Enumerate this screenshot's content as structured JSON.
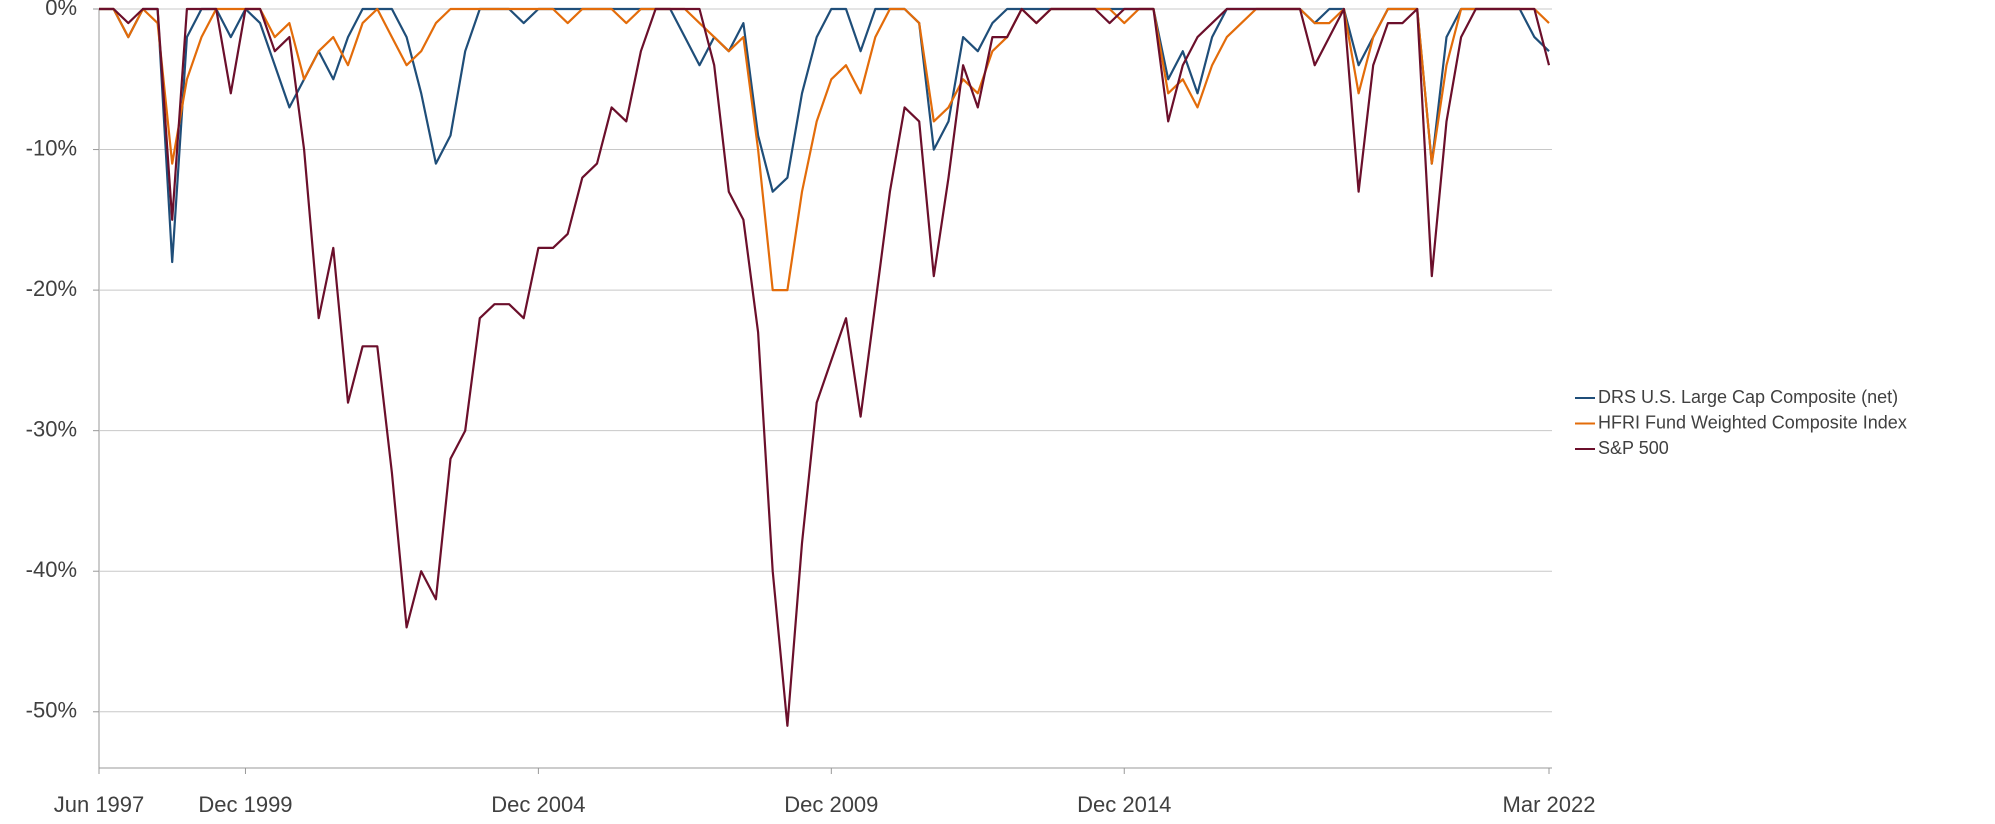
{
  "chart_data": {
    "type": "line",
    "x": [
      "1997-06",
      "1997-09",
      "1997-12",
      "1998-03",
      "1998-06",
      "1998-09",
      "1998-12",
      "1999-03",
      "1999-06",
      "1999-09",
      "1999-12",
      "2000-03",
      "2000-06",
      "2000-09",
      "2000-12",
      "2001-03",
      "2001-06",
      "2001-09",
      "2001-12",
      "2002-03",
      "2002-06",
      "2002-09",
      "2002-12",
      "2003-03",
      "2003-06",
      "2003-09",
      "2003-12",
      "2004-03",
      "2004-06",
      "2004-09",
      "2004-12",
      "2005-03",
      "2005-06",
      "2005-09",
      "2005-12",
      "2006-03",
      "2006-06",
      "2006-09",
      "2006-12",
      "2007-03",
      "2007-06",
      "2007-09",
      "2007-12",
      "2008-03",
      "2008-06",
      "2008-09",
      "2008-12",
      "2009-03",
      "2009-06",
      "2009-09",
      "2009-12",
      "2010-03",
      "2010-06",
      "2010-09",
      "2010-12",
      "2011-03",
      "2011-06",
      "2011-09",
      "2011-12",
      "2012-03",
      "2012-06",
      "2012-09",
      "2012-12",
      "2013-03",
      "2013-06",
      "2013-09",
      "2013-12",
      "2014-03",
      "2014-06",
      "2014-09",
      "2014-12",
      "2015-03",
      "2015-06",
      "2015-09",
      "2015-12",
      "2016-03",
      "2016-06",
      "2016-09",
      "2016-12",
      "2017-03",
      "2017-06",
      "2017-09",
      "2017-12",
      "2018-03",
      "2018-06",
      "2018-09",
      "2018-12",
      "2019-03",
      "2019-06",
      "2019-09",
      "2019-12",
      "2020-03",
      "2020-06",
      "2020-09",
      "2020-12",
      "2021-03",
      "2021-06",
      "2021-09",
      "2021-12",
      "2022-03"
    ],
    "series": [
      {
        "name": "DRS U.S. Large Cap Composite (net)",
        "color": "#1f4e79",
        "values": [
          0,
          0,
          -2,
          0,
          0,
          -18,
          -2,
          0,
          0,
          -2,
          0,
          -1,
          -4,
          -7,
          -5,
          -3,
          -5,
          -2,
          0,
          0,
          0,
          -2,
          -6,
          -11,
          -9,
          -3,
          0,
          0,
          0,
          -1,
          0,
          0,
          0,
          0,
          0,
          0,
          0,
          0,
          0,
          0,
          -2,
          -4,
          -2,
          -3,
          -1,
          -9,
          -13,
          -12,
          -6,
          -2,
          0,
          0,
          -3,
          0,
          0,
          0,
          -1,
          -10,
          -8,
          -2,
          -3,
          -1,
          0,
          0,
          0,
          0,
          0,
          0,
          0,
          0,
          0,
          0,
          0,
          -5,
          -3,
          -6,
          -2,
          0,
          0,
          0,
          0,
          0,
          0,
          -1,
          0,
          0,
          -4,
          -2,
          0,
          0,
          0,
          -11,
          -2,
          0,
          0,
          0,
          0,
          0,
          -2,
          -3
        ]
      },
      {
        "name": "HFRI Fund Weighted Composite Index",
        "color": "#e36c0a",
        "values": [
          0,
          0,
          -2,
          0,
          -1,
          -11,
          -5,
          -2,
          0,
          0,
          0,
          0,
          -2,
          -1,
          -5,
          -3,
          -2,
          -4,
          -1,
          0,
          -2,
          -4,
          -3,
          -1,
          0,
          0,
          0,
          0,
          0,
          0,
          0,
          0,
          -1,
          0,
          0,
          0,
          -1,
          0,
          0,
          0,
          0,
          -1,
          -2,
          -3,
          -2,
          -10,
          -20,
          -20,
          -13,
          -8,
          -5,
          -4,
          -6,
          -2,
          0,
          0,
          -1,
          -8,
          -7,
          -5,
          -6,
          -3,
          -2,
          0,
          -1,
          0,
          0,
          0,
          0,
          0,
          -1,
          0,
          0,
          -6,
          -5,
          -7,
          -4,
          -2,
          -1,
          0,
          0,
          0,
          0,
          -1,
          -1,
          0,
          -6,
          -2,
          0,
          0,
          0,
          -11,
          -4,
          0,
          0,
          0,
          0,
          0,
          0,
          -1
        ]
      },
      {
        "name": "S&P 500",
        "color": "#6b0f2b",
        "values": [
          0,
          0,
          -1,
          0,
          0,
          -15,
          0,
          0,
          0,
          -6,
          0,
          0,
          -3,
          -2,
          -10,
          -22,
          -17,
          -28,
          -24,
          -24,
          -33,
          -44,
          -40,
          -42,
          -32,
          -30,
          -22,
          -21,
          -21,
          -22,
          -17,
          -17,
          -16,
          -12,
          -11,
          -7,
          -8,
          -3,
          0,
          0,
          0,
          0,
          -4,
          -13,
          -15,
          -23,
          -40,
          -51,
          -38,
          -28,
          -25,
          -22,
          -29,
          -21,
          -13,
          -7,
          -8,
          -19,
          -12,
          -4,
          -7,
          -2,
          -2,
          0,
          -1,
          0,
          0,
          0,
          0,
          -1,
          0,
          0,
          0,
          -8,
          -4,
          -2,
          -1,
          0,
          0,
          0,
          0,
          0,
          0,
          -4,
          -2,
          0,
          -13,
          -4,
          -1,
          -1,
          0,
          -19,
          -8,
          -2,
          0,
          0,
          0,
          0,
          0,
          -4
        ]
      }
    ],
    "xlim": [
      "1997-06",
      "2022-03"
    ],
    "xticks": [
      {
        "value": "1997-06",
        "label": "Jun 1997"
      },
      {
        "value": "1999-12",
        "label": "Dec 1999"
      },
      {
        "value": "2004-12",
        "label": "Dec 2004"
      },
      {
        "value": "2009-12",
        "label": "Dec 2009"
      },
      {
        "value": "2014-12",
        "label": "Dec 2014"
      },
      {
        "value": "2022-03",
        "label": "Mar 2022"
      }
    ],
    "ylim": [
      -54,
      0
    ],
    "yticks": [
      {
        "value": -50,
        "label": "-50%"
      },
      {
        "value": -40,
        "label": "-40%"
      },
      {
        "value": -30,
        "label": "-30%"
      },
      {
        "value": -20,
        "label": "-20%"
      },
      {
        "value": -10,
        "label": "-10%"
      },
      {
        "value": 0,
        "label": "0%"
      }
    ],
    "grid": true,
    "legend": "right"
  }
}
